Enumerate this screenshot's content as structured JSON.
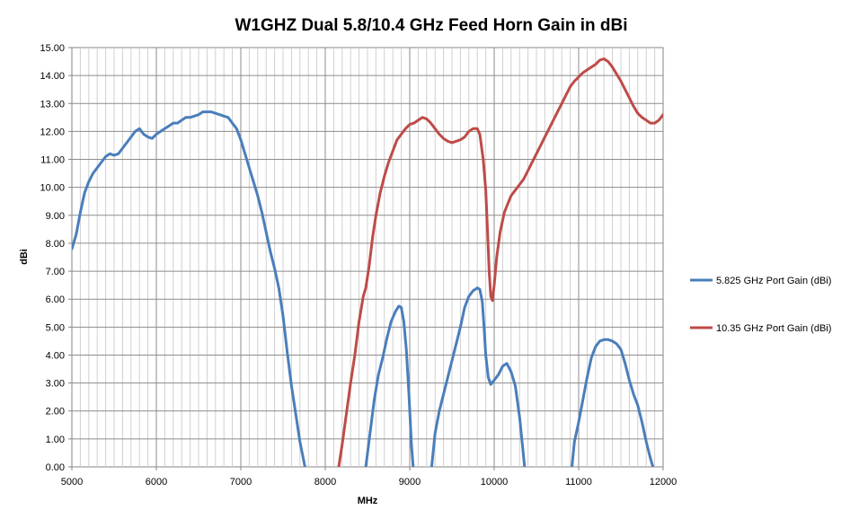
{
  "chart_data": {
    "type": "line",
    "title": "W1GHZ Dual  5.8/10.4 GHz  Feed Horn  Gain  in dBi",
    "xlabel": "MHz",
    "ylabel": "dBi",
    "xlim": [
      5000,
      12000
    ],
    "ylim": [
      0,
      15
    ],
    "x_ticks": [
      5000,
      6000,
      7000,
      8000,
      9000,
      10000,
      11000,
      12000
    ],
    "y_ticks": [
      "0.00",
      "1.00",
      "2.00",
      "3.00",
      "4.00",
      "5.00",
      "6.00",
      "7.00",
      "8.00",
      "9.00",
      "10.00",
      "11.00",
      "12.00",
      "13.00",
      "14.00",
      "15.00"
    ],
    "grid": true,
    "legend_position": "right",
    "series": [
      {
        "name": "5.825 GHz Port Gain (dBi)",
        "color": "#4a7ebb",
        "segments": [
          [
            [
              5000,
              7.8
            ],
            [
              5050,
              8.3
            ],
            [
              5100,
              9.1
            ],
            [
              5150,
              9.8
            ],
            [
              5200,
              10.2
            ],
            [
              5250,
              10.5
            ],
            [
              5300,
              10.7
            ],
            [
              5350,
              10.9
            ],
            [
              5400,
              11.1
            ],
            [
              5450,
              11.2
            ],
            [
              5500,
              11.15
            ],
            [
              5550,
              11.2
            ],
            [
              5600,
              11.4
            ],
            [
              5650,
              11.6
            ],
            [
              5700,
              11.8
            ],
            [
              5750,
              12.0
            ],
            [
              5800,
              12.1
            ],
            [
              5850,
              11.9
            ],
            [
              5900,
              11.8
            ],
            [
              5950,
              11.75
            ],
            [
              6000,
              11.9
            ],
            [
              6050,
              12.0
            ],
            [
              6100,
              12.1
            ],
            [
              6150,
              12.2
            ],
            [
              6200,
              12.3
            ],
            [
              6250,
              12.3
            ],
            [
              6300,
              12.4
            ],
            [
              6350,
              12.5
            ],
            [
              6400,
              12.5
            ],
            [
              6450,
              12.55
            ],
            [
              6500,
              12.6
            ],
            [
              6550,
              12.7
            ],
            [
              6600,
              12.7
            ],
            [
              6650,
              12.7
            ],
            [
              6700,
              12.65
            ],
            [
              6750,
              12.6
            ],
            [
              6800,
              12.55
            ],
            [
              6850,
              12.5
            ],
            [
              6900,
              12.3
            ],
            [
              6950,
              12.1
            ],
            [
              7000,
              11.7
            ],
            [
              7050,
              11.2
            ],
            [
              7100,
              10.7
            ],
            [
              7150,
              10.2
            ],
            [
              7200,
              9.7
            ],
            [
              7250,
              9.1
            ],
            [
              7300,
              8.4
            ],
            [
              7350,
              7.7
            ],
            [
              7400,
              7.1
            ],
            [
              7450,
              6.4
            ],
            [
              7500,
              5.4
            ],
            [
              7550,
              4.1
            ],
            [
              7600,
              2.9
            ],
            [
              7650,
              1.9
            ],
            [
              7700,
              0.9
            ],
            [
              7760,
              0
            ]
          ],
          [
            [
              8480,
              0
            ],
            [
              8530,
              1.2
            ],
            [
              8580,
              2.4
            ],
            [
              8630,
              3.3
            ],
            [
              8680,
              3.9
            ],
            [
              8730,
              4.6
            ],
            [
              8780,
              5.2
            ],
            [
              8830,
              5.55
            ],
            [
              8870,
              5.75
            ],
            [
              8900,
              5.7
            ],
            [
              8930,
              5.2
            ],
            [
              8960,
              4.2
            ],
            [
              8990,
              2.6
            ],
            [
              9020,
              0.8
            ],
            [
              9040,
              0
            ]
          ],
          [
            [
              9260,
              0
            ],
            [
              9300,
              1.2
            ],
            [
              9350,
              2.0
            ],
            [
              9400,
              2.6
            ],
            [
              9450,
              3.2
            ],
            [
              9500,
              3.8
            ],
            [
              9550,
              4.4
            ],
            [
              9600,
              5.0
            ],
            [
              9650,
              5.7
            ],
            [
              9700,
              6.1
            ],
            [
              9750,
              6.3
            ],
            [
              9800,
              6.4
            ],
            [
              9830,
              6.35
            ],
            [
              9860,
              5.9
            ],
            [
              9880,
              5.0
            ],
            [
              9900,
              4.0
            ],
            [
              9930,
              3.2
            ],
            [
              9960,
              2.95
            ],
            [
              10000,
              3.1
            ],
            [
              10050,
              3.3
            ],
            [
              10100,
              3.6
            ],
            [
              10150,
              3.7
            ],
            [
              10200,
              3.4
            ],
            [
              10250,
              2.9
            ],
            [
              10300,
              1.8
            ],
            [
              10340,
              0.6
            ],
            [
              10360,
              0
            ]
          ],
          [
            [
              10920,
              0
            ],
            [
              10950,
              0.9
            ],
            [
              11000,
              1.6
            ],
            [
              11050,
              2.4
            ],
            [
              11100,
              3.2
            ],
            [
              11150,
              3.9
            ],
            [
              11200,
              4.3
            ],
            [
              11250,
              4.5
            ],
            [
              11300,
              4.55
            ],
            [
              11350,
              4.55
            ],
            [
              11400,
              4.5
            ],
            [
              11450,
              4.4
            ],
            [
              11500,
              4.2
            ],
            [
              11550,
              3.7
            ],
            [
              11600,
              3.1
            ],
            [
              11650,
              2.6
            ],
            [
              11700,
              2.2
            ],
            [
              11750,
              1.6
            ],
            [
              11800,
              0.9
            ],
            [
              11850,
              0.3
            ],
            [
              11880,
              0
            ]
          ]
        ]
      },
      {
        "name": "10.35 GHz Port Gain (dBi)",
        "color": "#be4b48",
        "segments": [
          [
            [
              8160,
              0
            ],
            [
              8200,
              0.8
            ],
            [
              8250,
              1.9
            ],
            [
              8300,
              3.0
            ],
            [
              8350,
              4.0
            ],
            [
              8400,
              5.2
            ],
            [
              8450,
              6.1
            ],
            [
              8480,
              6.4
            ],
            [
              8520,
              7.2
            ],
            [
              8560,
              8.2
            ],
            [
              8600,
              9.0
            ],
            [
              8650,
              9.8
            ],
            [
              8700,
              10.4
            ],
            [
              8750,
              10.9
            ],
            [
              8800,
              11.3
            ],
            [
              8850,
              11.7
            ],
            [
              8900,
              11.9
            ],
            [
              8950,
              12.1
            ],
            [
              9000,
              12.25
            ],
            [
              9050,
              12.3
            ],
            [
              9100,
              12.4
            ],
            [
              9150,
              12.5
            ],
            [
              9200,
              12.45
            ],
            [
              9250,
              12.3
            ],
            [
              9300,
              12.1
            ],
            [
              9350,
              11.9
            ],
            [
              9400,
              11.75
            ],
            [
              9450,
              11.65
            ],
            [
              9500,
              11.6
            ],
            [
              9550,
              11.65
            ],
            [
              9600,
              11.7
            ],
            [
              9650,
              11.8
            ],
            [
              9700,
              12.0
            ],
            [
              9750,
              12.1
            ],
            [
              9800,
              12.1
            ],
            [
              9830,
              11.9
            ],
            [
              9870,
              11.0
            ],
            [
              9900,
              9.9
            ],
            [
              9920,
              8.5
            ],
            [
              9940,
              7.0
            ],
            [
              9960,
              6.1
            ],
            [
              9980,
              5.95
            ],
            [
              10000,
              6.5
            ],
            [
              10030,
              7.5
            ],
            [
              10070,
              8.4
            ],
            [
              10120,
              9.1
            ],
            [
              10160,
              9.4
            ],
            [
              10200,
              9.7
            ],
            [
              10250,
              9.9
            ],
            [
              10300,
              10.1
            ],
            [
              10350,
              10.3
            ],
            [
              10400,
              10.6
            ],
            [
              10450,
              10.9
            ],
            [
              10500,
              11.2
            ],
            [
              10550,
              11.5
            ],
            [
              10600,
              11.8
            ],
            [
              10650,
              12.1
            ],
            [
              10700,
              12.4
            ],
            [
              10750,
              12.7
            ],
            [
              10800,
              13.0
            ],
            [
              10850,
              13.3
            ],
            [
              10900,
              13.6
            ],
            [
              10950,
              13.8
            ],
            [
              11000,
              13.95
            ],
            [
              11050,
              14.1
            ],
            [
              11100,
              14.2
            ],
            [
              11150,
              14.3
            ],
            [
              11200,
              14.4
            ],
            [
              11250,
              14.55
            ],
            [
              11300,
              14.6
            ],
            [
              11350,
              14.5
            ],
            [
              11400,
              14.3
            ],
            [
              11450,
              14.05
            ],
            [
              11500,
              13.8
            ],
            [
              11550,
              13.5
            ],
            [
              11600,
              13.2
            ],
            [
              11650,
              12.9
            ],
            [
              11700,
              12.65
            ],
            [
              11750,
              12.5
            ],
            [
              11800,
              12.4
            ],
            [
              11850,
              12.3
            ],
            [
              11900,
              12.3
            ],
            [
              11950,
              12.4
            ],
            [
              12000,
              12.6
            ]
          ]
        ]
      }
    ]
  }
}
